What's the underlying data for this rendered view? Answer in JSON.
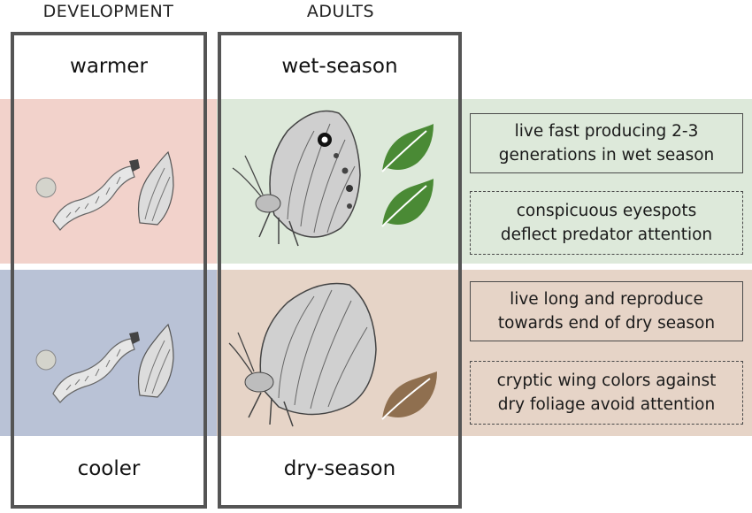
{
  "headers": {
    "development": "DEVELOPMENT",
    "adults": "ADULTS"
  },
  "labels": {
    "warmer": "warmer",
    "cooler": "cooler",
    "wet_season": "wet-season",
    "dry_season": "dry-season"
  },
  "wet_notes": {
    "life_history": "live fast producing 2-3 generations in wet season",
    "life_history_lines": [
      "live fast producing 2-3",
      "generations in wet season"
    ],
    "wing_pattern_lines": [
      "conspicuous eyespots",
      "deflect predator attention"
    ]
  },
  "dry_notes": {
    "life_history_lines": [
      "live long and reproduce",
      "towards end of dry season"
    ],
    "wing_pattern_lines": [
      "cryptic wing colors against",
      "dry foliage avoid attention"
    ]
  },
  "colors": {
    "warm_band": "#f2d2cb",
    "cool_band": "#b9c2d6",
    "wet_band": "#dde9da",
    "dry_band": "#e6d4c7",
    "wet_leaf": "#4a8a35",
    "dry_leaf": "#8f6f4f",
    "frame": "#555555"
  },
  "icons": {
    "egg": "egg-icon",
    "larva": "caterpillar-icon",
    "pupa": "pupa-icon",
    "wet_butterfly": "eyespot-butterfly-icon",
    "dry_butterfly": "cryptic-butterfly-icon",
    "leaf": "leaf-icon"
  }
}
